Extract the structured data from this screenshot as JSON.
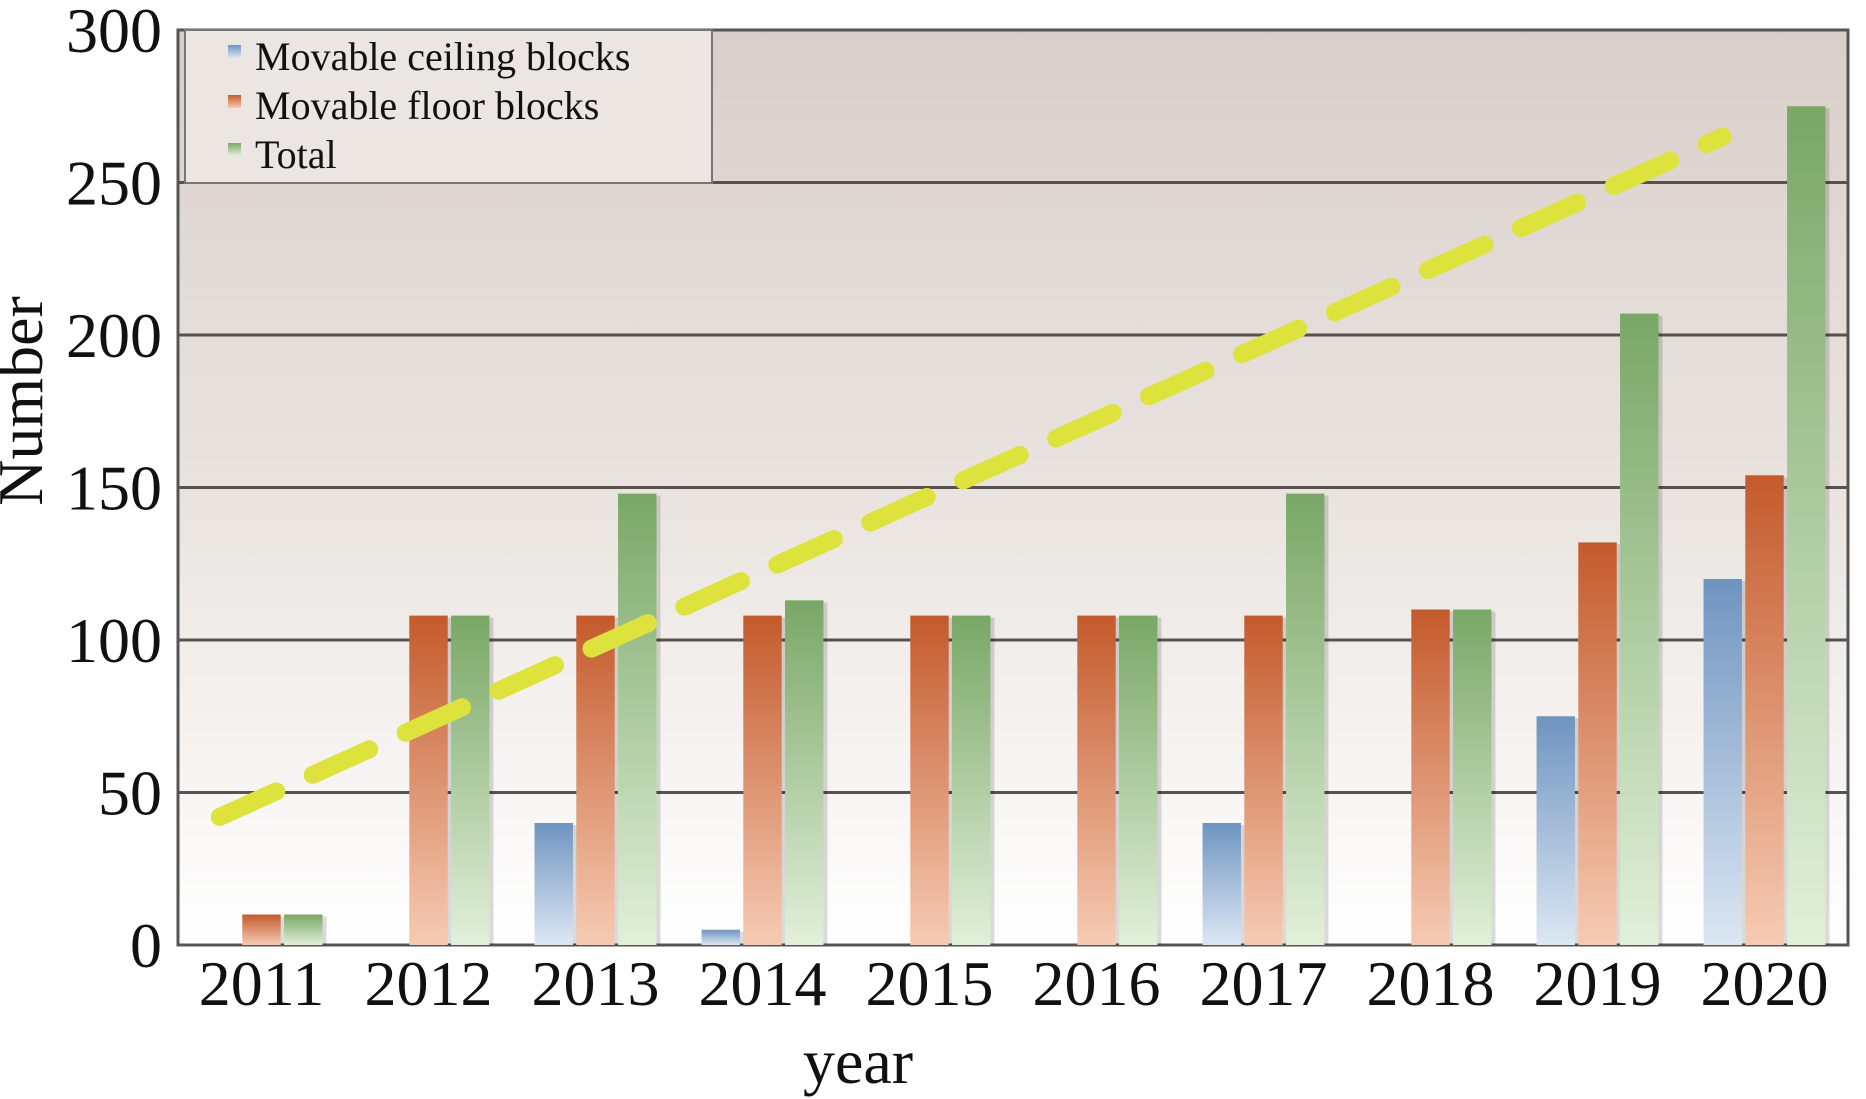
{
  "chart_data": {
    "type": "bar",
    "title": "",
    "xlabel": "year",
    "ylabel": "Number",
    "ylim": [
      0,
      300
    ],
    "yticks": [
      0,
      50,
      100,
      150,
      200,
      250,
      300
    ],
    "grid": true,
    "legend_position": "top-left",
    "categories": [
      "2011",
      "2012",
      "2013",
      "2014",
      "2015",
      "2016",
      "2017",
      "2018",
      "2019",
      "2020"
    ],
    "series": [
      {
        "name": "Movable ceiling blocks",
        "color": "#6f94c0",
        "values": [
          0,
          0,
          40,
          5,
          0,
          0,
          40,
          0,
          75,
          120
        ]
      },
      {
        "name": "Movable floor blocks",
        "color": "#cc6a3c",
        "values": [
          10,
          108,
          108,
          108,
          108,
          108,
          108,
          110,
          132,
          154
        ]
      },
      {
        "name": "Total",
        "color": "#82ae6e",
        "values": [
          10,
          108,
          148,
          113,
          108,
          108,
          148,
          110,
          207,
          275
        ]
      }
    ],
    "trendline": {
      "style": "dashed",
      "color": "#dde23c",
      "from": {
        "x": "2011",
        "y": 42
      },
      "to": {
        "x": "2020",
        "y": 265
      }
    }
  }
}
